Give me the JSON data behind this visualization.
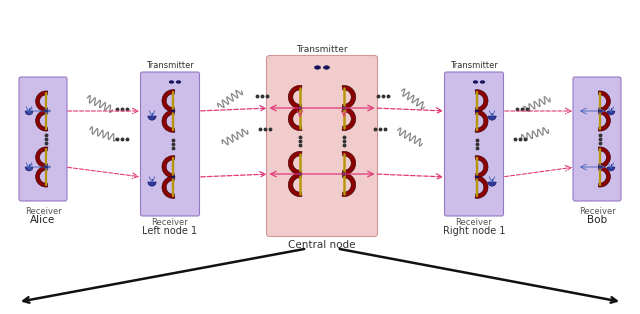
{
  "bg_color": "#ffffff",
  "node_purple": "#c8b8e8",
  "node_pink": "#f0c8c8",
  "dark_red": "#8b0000",
  "gold": "#b8960c",
  "dark_blue": "#1a1060",
  "det_blue": "#303898",
  "arr_pink": "#e03878",
  "arr_blue": "#4060b8",
  "arr_black": "#111111",
  "dots_col": "#333333",
  "coil_col": "#888888",
  "fig_w": 6.4,
  "fig_h": 3.14,
  "dpi": 100,
  "labels": {
    "alice": "Alice",
    "bob": "Bob",
    "left_node": "Left node 1",
    "right_node": "Right node 1",
    "central_node": "Central node",
    "transmitter": "Transmitter",
    "receiver": "Receiver"
  }
}
